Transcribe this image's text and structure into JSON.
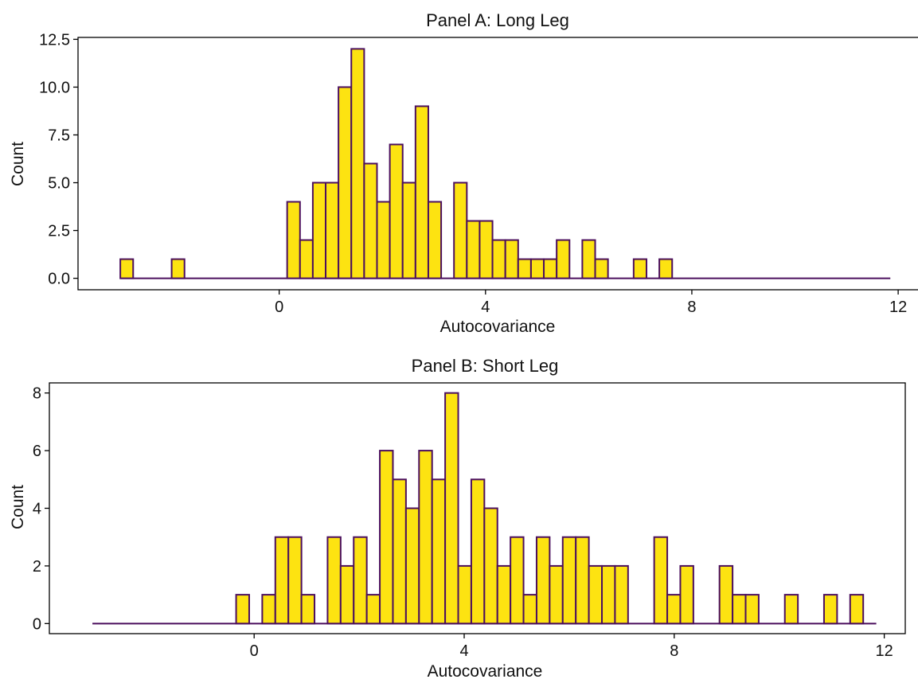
{
  "colors": {
    "bar_fill": "#FDE311",
    "bar_edge": "#4B0F5E",
    "axis": "#000000"
  },
  "chart_data": [
    {
      "type": "bar",
      "title": "Panel A: Long Leg",
      "xlabel": "Autocovariance",
      "ylabel": "Count",
      "xlim": [
        -3.9,
        12.4
      ],
      "ylim": [
        -0.6,
        12.6
      ],
      "xticks": [
        0,
        4,
        8,
        12
      ],
      "yticks": [
        0.0,
        2.5,
        5.0,
        7.5,
        10.0,
        12.5
      ],
      "ytick_labels": [
        "0.0",
        "2.5",
        "5.0",
        "7.5",
        "10.0",
        "12.5"
      ],
      "xticks_labels": [
        "0",
        "4",
        "8",
        "12"
      ],
      "bin_start": -3.08,
      "bin_width": 0.2488,
      "counts": [
        1,
        0,
        0,
        0,
        1,
        0,
        0,
        0,
        0,
        0,
        0,
        0,
        0,
        4,
        2,
        5,
        5,
        10,
        12,
        6,
        4,
        7,
        5,
        9,
        4,
        0,
        5,
        3,
        3,
        2,
        2,
        1,
        1,
        1,
        2,
        0,
        2,
        1,
        0,
        0,
        1,
        0,
        1,
        0,
        0,
        0,
        0,
        0,
        0,
        0,
        0,
        0,
        0,
        0,
        0,
        0,
        0,
        0,
        0,
        0
      ]
    },
    {
      "type": "bar",
      "title": "Panel B: Short Leg",
      "xlabel": "Autocovariance",
      "ylabel": "Count",
      "xlim": [
        -3.9,
        12.4
      ],
      "ylim": [
        -0.35,
        8.35
      ],
      "xticks": [
        0,
        4,
        8,
        12
      ],
      "yticks": [
        0,
        2,
        4,
        6,
        8
      ],
      "ytick_labels": [
        "0",
        "2",
        "4",
        "6",
        "8"
      ],
      "xticks_labels": [
        "0",
        "4",
        "8",
        "12"
      ],
      "bin_start": -3.08,
      "bin_width": 0.2488,
      "counts": [
        0,
        0,
        0,
        0,
        0,
        0,
        0,
        0,
        0,
        0,
        0,
        1,
        0,
        1,
        3,
        3,
        1,
        0,
        3,
        2,
        3,
        1,
        6,
        5,
        4,
        6,
        5,
        8,
        2,
        5,
        4,
        2,
        3,
        1,
        3,
        2,
        3,
        3,
        2,
        2,
        2,
        0,
        0,
        3,
        1,
        2,
        0,
        0,
        2,
        1,
        1,
        0,
        0,
        1,
        0,
        0,
        1,
        0,
        1,
        0
      ]
    }
  ]
}
